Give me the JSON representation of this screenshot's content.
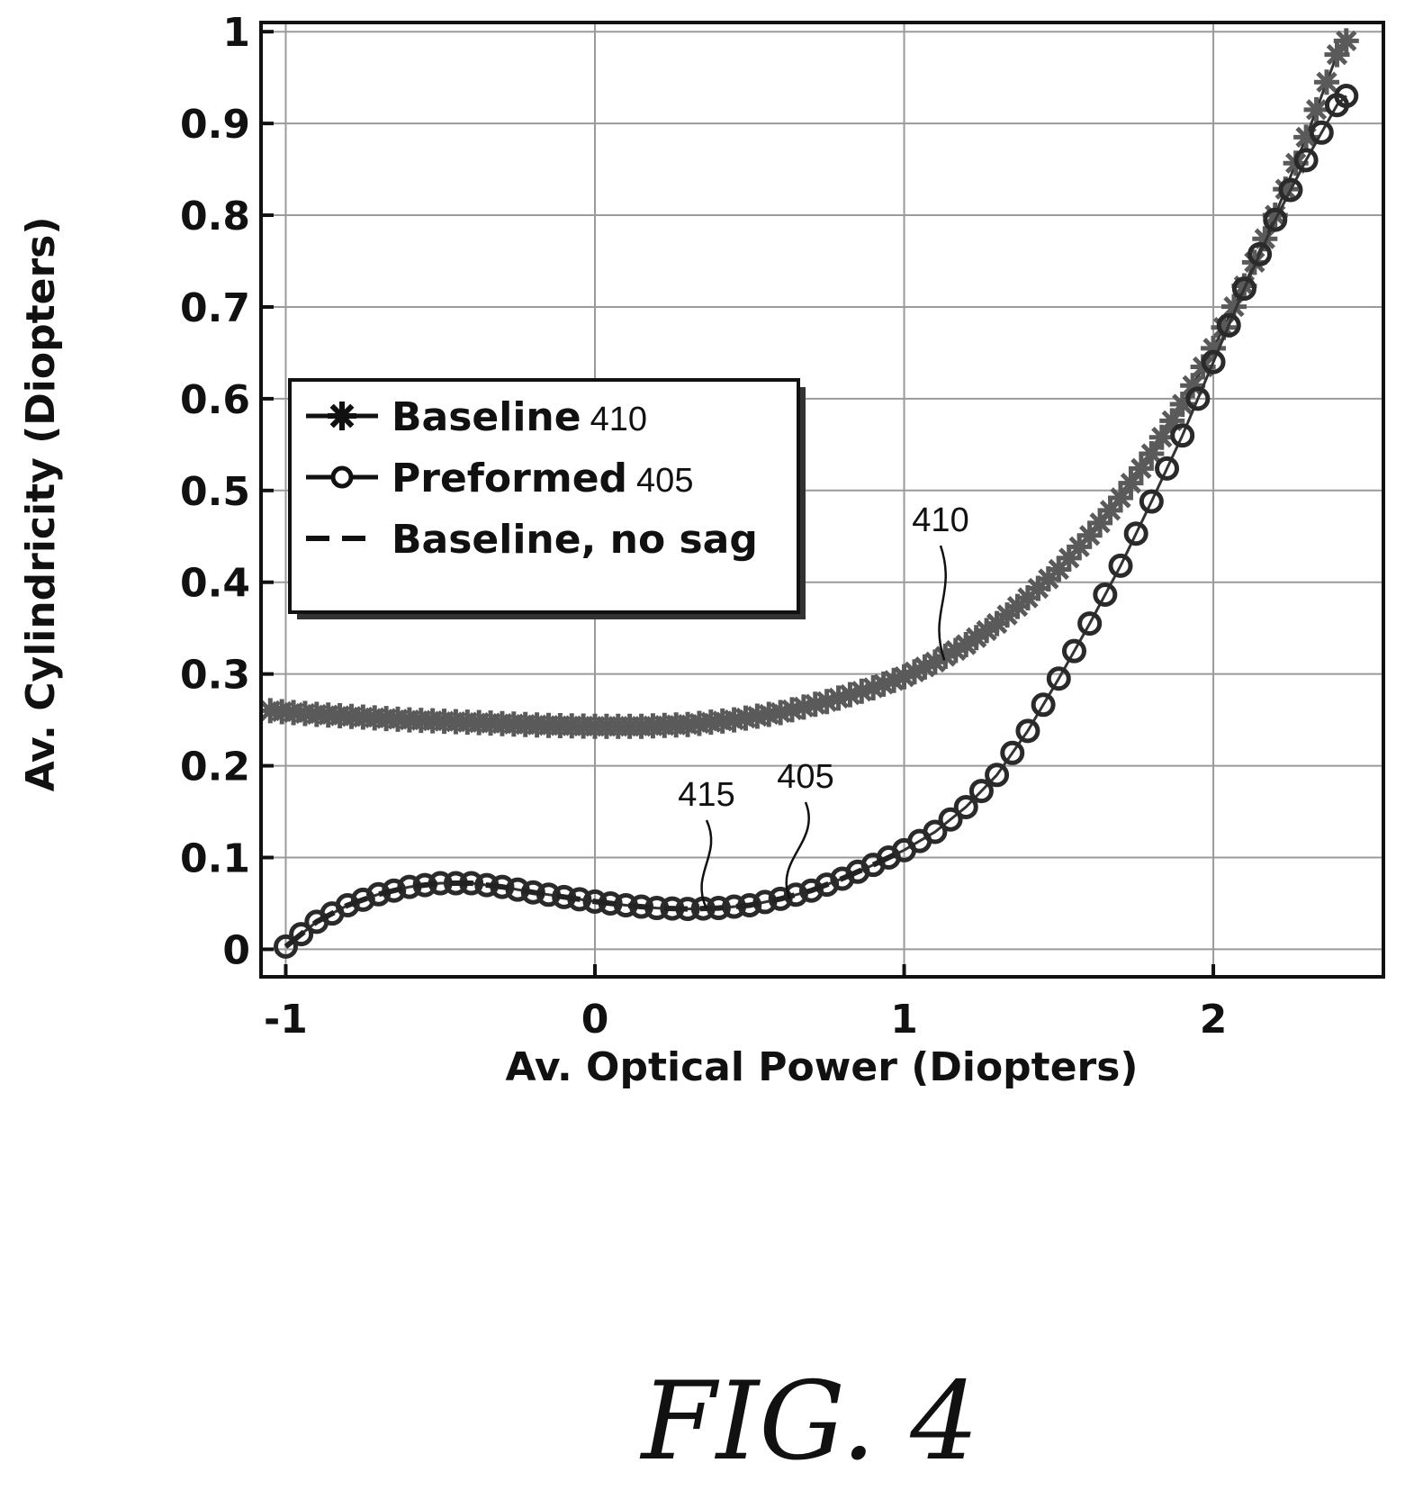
{
  "figure": {
    "caption": "FIG. 4"
  },
  "chart_data": {
    "type": "scatter",
    "xlabel": "Av. Optical Power (Diopters)",
    "ylabel": "Av. Cylindricity (Diopters)",
    "xlim": [
      -1.08,
      2.55
    ],
    "ylim": [
      -0.03,
      1.01
    ],
    "xticks": [
      "-1",
      "0",
      "1",
      "2"
    ],
    "yticks": [
      "0",
      "0.1",
      "0.2",
      "0.3",
      "0.4",
      "0.5",
      "0.6",
      "0.7",
      "0.8",
      "0.9",
      "1"
    ],
    "grid": true,
    "legend_position": "middle-left",
    "series": [
      {
        "name": "Baseline",
        "ref": "410",
        "marker": "star",
        "style": "solid",
        "points": [
          [
            -1.05,
            0.26
          ],
          [
            -0.9,
            0.256
          ],
          [
            -0.75,
            0.253
          ],
          [
            -0.6,
            0.25
          ],
          [
            -0.45,
            0.248
          ],
          [
            -0.3,
            0.246
          ],
          [
            -0.15,
            0.244
          ],
          [
            0.0,
            0.243
          ],
          [
            0.15,
            0.243
          ],
          [
            0.3,
            0.245
          ],
          [
            0.45,
            0.25
          ],
          [
            0.6,
            0.258
          ],
          [
            0.75,
            0.27
          ],
          [
            0.9,
            0.285
          ],
          [
            1.0,
            0.297
          ],
          [
            1.1,
            0.313
          ],
          [
            1.2,
            0.332
          ],
          [
            1.3,
            0.355
          ],
          [
            1.4,
            0.383
          ],
          [
            1.5,
            0.414
          ],
          [
            1.6,
            0.451
          ],
          [
            1.7,
            0.492
          ],
          [
            1.8,
            0.54
          ],
          [
            1.9,
            0.594
          ],
          [
            2.0,
            0.655
          ],
          [
            2.1,
            0.723
          ],
          [
            2.2,
            0.8
          ],
          [
            2.3,
            0.885
          ],
          [
            2.4,
            0.975
          ],
          [
            2.43,
            0.99
          ]
        ]
      },
      {
        "name": "Preformed",
        "ref": "405",
        "marker": "circle",
        "style": "solid",
        "points": [
          [
            -1.0,
            0.003
          ],
          [
            -0.9,
            0.03
          ],
          [
            -0.8,
            0.048
          ],
          [
            -0.7,
            0.06
          ],
          [
            -0.6,
            0.068
          ],
          [
            -0.5,
            0.072
          ],
          [
            -0.4,
            0.072
          ],
          [
            -0.3,
            0.068
          ],
          [
            -0.2,
            0.062
          ],
          [
            -0.1,
            0.057
          ],
          [
            0.0,
            0.052
          ],
          [
            0.1,
            0.048
          ],
          [
            0.2,
            0.045
          ],
          [
            0.3,
            0.044
          ],
          [
            0.4,
            0.045
          ],
          [
            0.5,
            0.048
          ],
          [
            0.6,
            0.055
          ],
          [
            0.7,
            0.064
          ],
          [
            0.8,
            0.077
          ],
          [
            0.9,
            0.092
          ],
          [
            1.0,
            0.108
          ],
          [
            1.1,
            0.128
          ],
          [
            1.2,
            0.155
          ],
          [
            1.3,
            0.19
          ],
          [
            1.4,
            0.238
          ],
          [
            1.5,
            0.295
          ],
          [
            1.6,
            0.355
          ],
          [
            1.7,
            0.418
          ],
          [
            1.8,
            0.488
          ],
          [
            1.9,
            0.56
          ],
          [
            2.0,
            0.64
          ],
          [
            2.1,
            0.72
          ],
          [
            2.2,
            0.795
          ],
          [
            2.3,
            0.86
          ],
          [
            2.4,
            0.92
          ],
          [
            2.43,
            0.93
          ]
        ]
      },
      {
        "name": "Baseline, no sag",
        "ref": "415",
        "marker": "none",
        "style": "dashed",
        "points": [
          [
            -1.0,
            0.003
          ],
          [
            -0.9,
            0.03
          ],
          [
            -0.8,
            0.048
          ],
          [
            -0.7,
            0.06
          ],
          [
            -0.6,
            0.068
          ],
          [
            -0.5,
            0.072
          ],
          [
            -0.4,
            0.072
          ],
          [
            -0.3,
            0.068
          ],
          [
            -0.2,
            0.062
          ],
          [
            -0.1,
            0.057
          ],
          [
            0.0,
            0.052
          ],
          [
            0.1,
            0.048
          ],
          [
            0.2,
            0.045
          ],
          [
            0.3,
            0.044
          ],
          [
            0.4,
            0.045
          ],
          [
            0.5,
            0.048
          ],
          [
            0.6,
            0.055
          ],
          [
            0.7,
            0.064
          ],
          [
            0.8,
            0.077
          ],
          [
            0.9,
            0.092
          ],
          [
            1.0,
            0.108
          ]
        ]
      }
    ],
    "annotations": [
      {
        "text": "410",
        "target": [
          1.13,
          0.315
        ]
      },
      {
        "text": "415",
        "target": [
          0.36,
          0.045
        ]
      },
      {
        "text": "405",
        "target": [
          0.63,
          0.055
        ]
      }
    ]
  }
}
